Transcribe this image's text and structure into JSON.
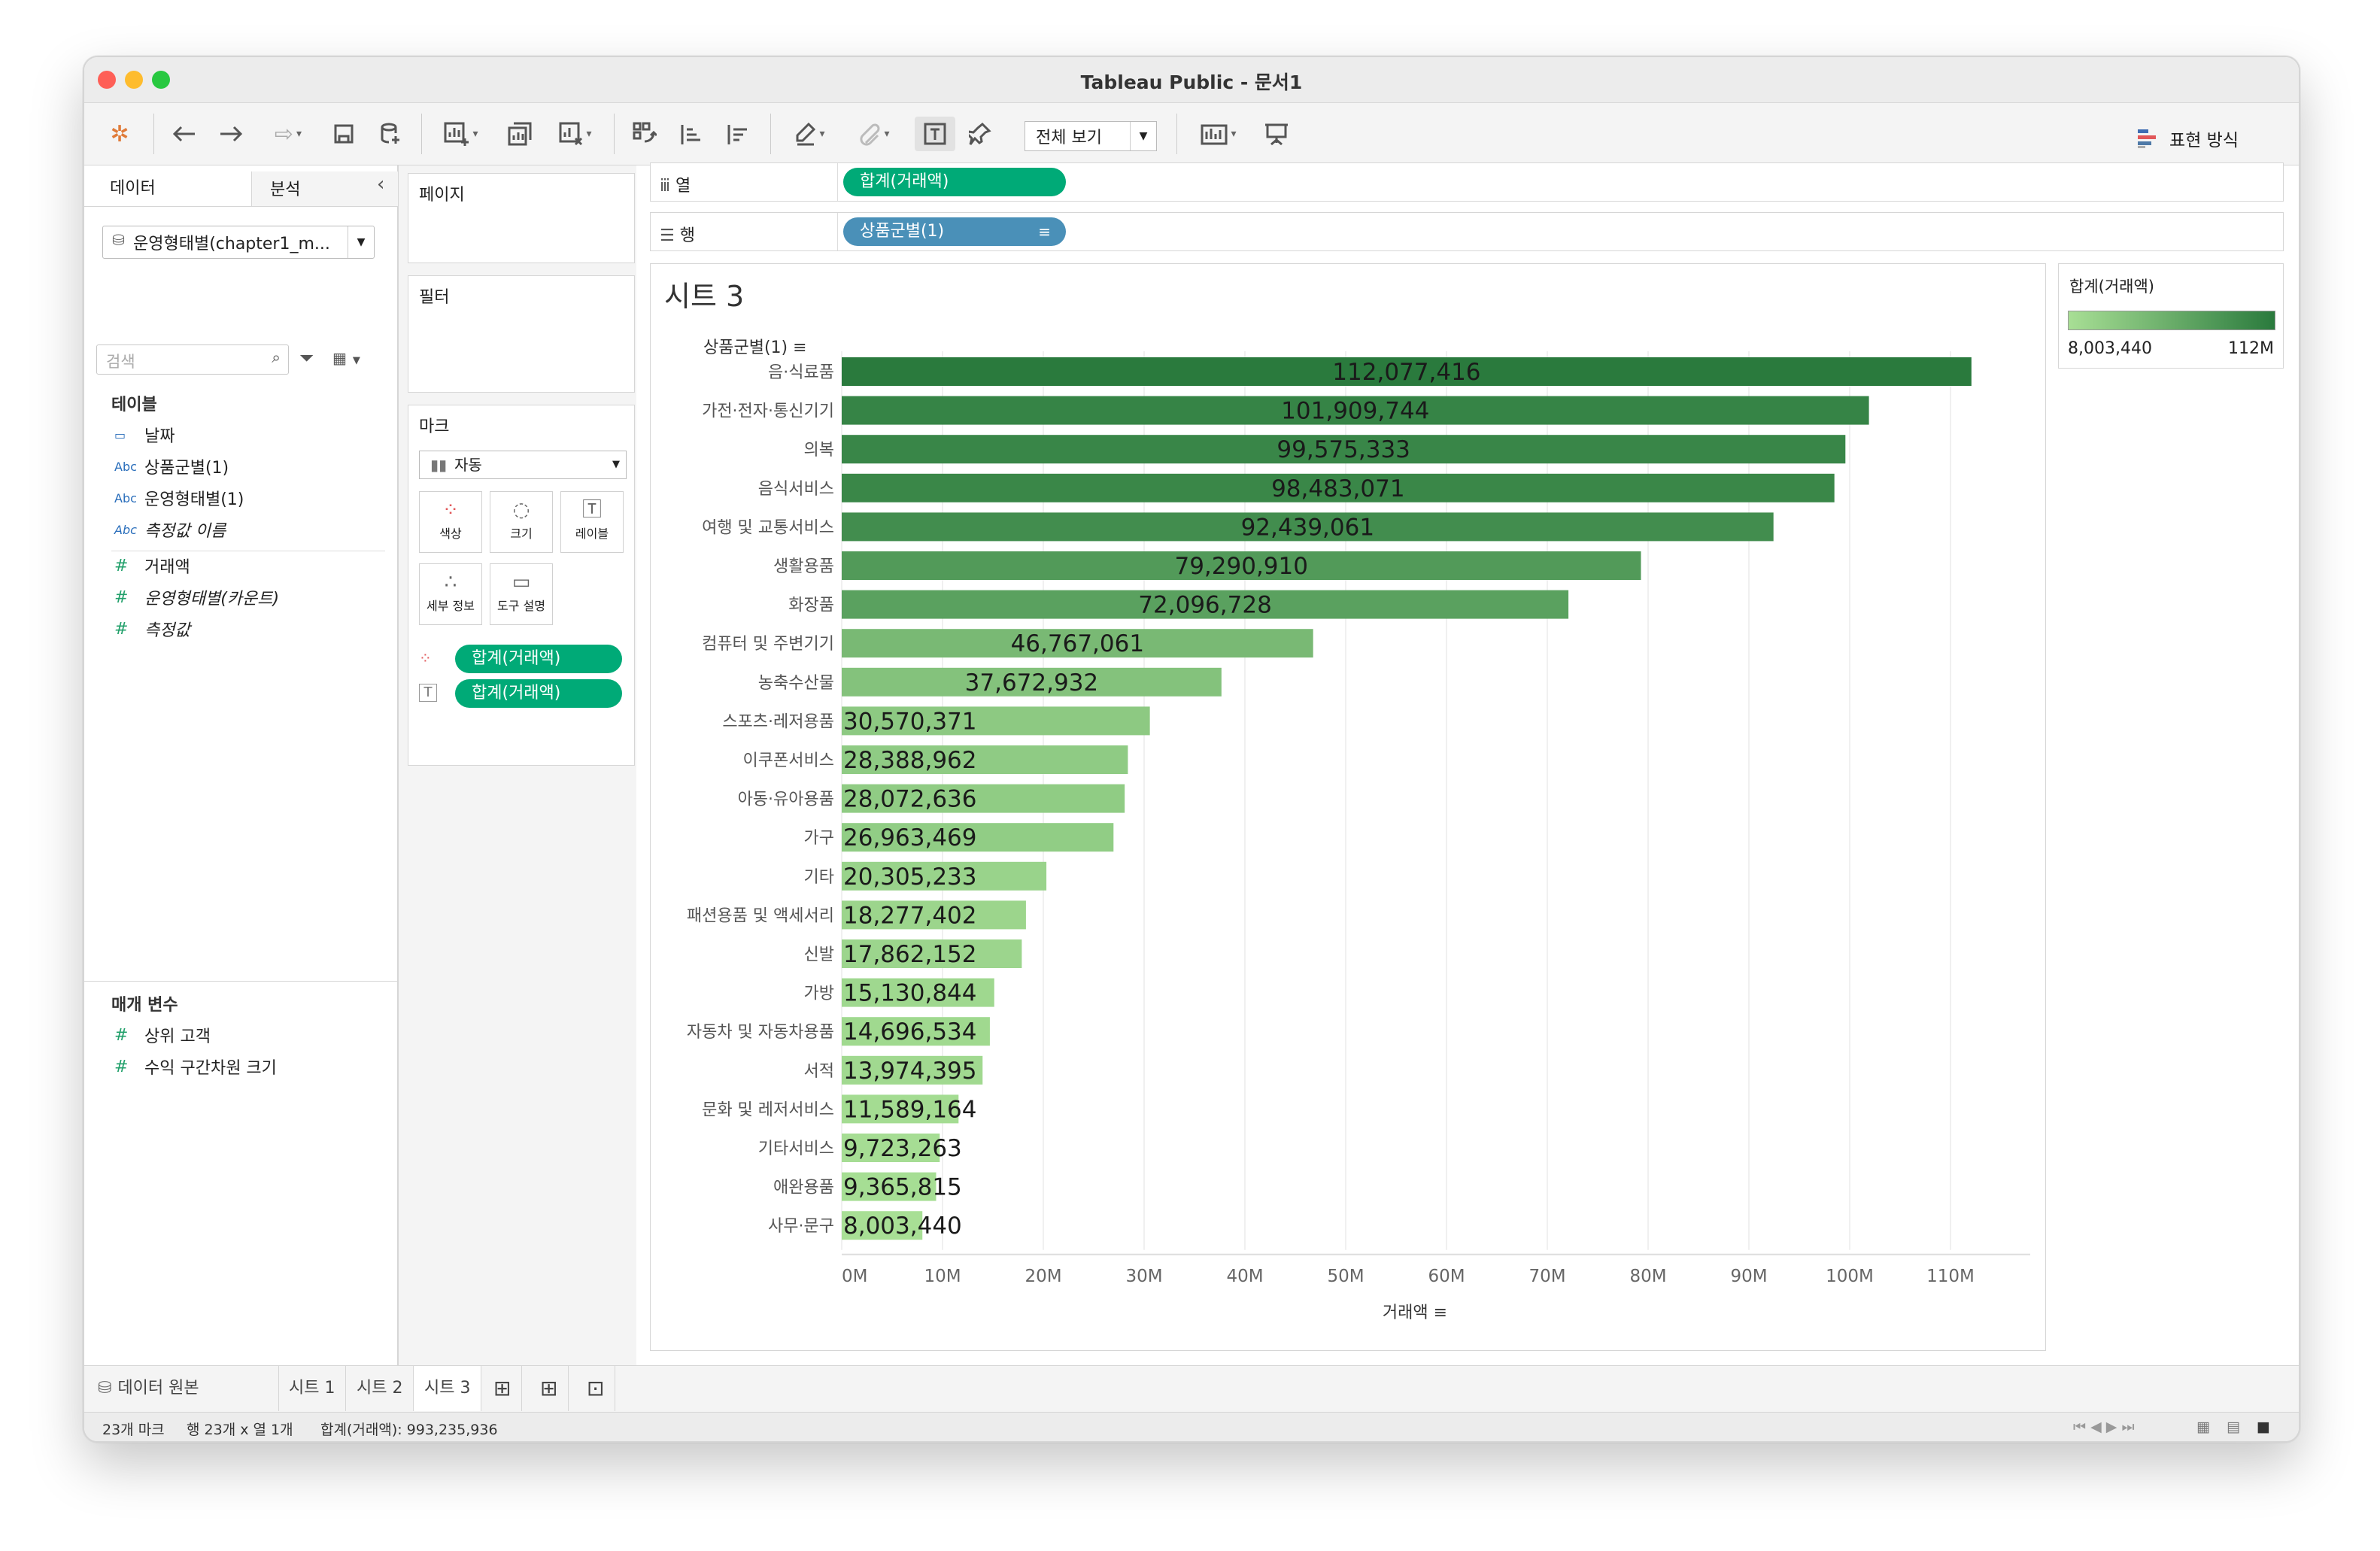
{
  "window": {
    "title": "Tableau Public - 문서1"
  },
  "toolbar": {
    "view_select": "전체 보기",
    "show_me": "표현 방식"
  },
  "left_panel": {
    "tab_data": "데이터",
    "tab_analysis": "분석",
    "datasource": "운영형태별(chapter1_m...",
    "search_placeholder": "검색",
    "tables_header": "테이블",
    "fields": [
      {
        "type": "date",
        "name": "날짜"
      },
      {
        "type": "Abc",
        "name": "상품군별(1)"
      },
      {
        "type": "Abc",
        "name": "운영형태별(1)"
      },
      {
        "type": "Abc",
        "name": "측정값 이름"
      },
      {
        "type": "#",
        "name": "거래액"
      },
      {
        "type": "#",
        "name": "운영형태별(카운트)"
      },
      {
        "type": "#",
        "name": "측정값"
      }
    ],
    "params_header": "매개 변수",
    "params": [
      {
        "type": "#",
        "name": "상위 고객"
      },
      {
        "type": "#",
        "name": "수익 구간차원 크기"
      }
    ]
  },
  "cards": {
    "pages": "페이지",
    "filters": "필터",
    "marks": "마크",
    "mark_type": "자동",
    "btn_color": "색상",
    "btn_size": "크기",
    "btn_label": "레이블",
    "btn_detail": "세부 정보",
    "btn_tooltip": "도구 설명",
    "pill_color": "합계(거래액)",
    "pill_label": "합계(거래액)"
  },
  "shelves": {
    "columns_label": "열",
    "columns_pill": "합계(거래액)",
    "rows_label": "행",
    "rows_pill": "상품군별(1)"
  },
  "legend": {
    "title": "합계(거래액)",
    "min_label": "8,003,440",
    "max_label": "112M",
    "color_min": "#a8df95",
    "color_max": "#2a7a3d"
  },
  "sheet_tabs": {
    "datasource": "데이터 원본",
    "tabs": [
      "시트 1",
      "시트 2",
      "시트 3"
    ],
    "active": "시트 3"
  },
  "status": {
    "marks": "23개 마크",
    "rows_cols": "행 23개 x 열 1개",
    "sum": "합계(거래액): 993,235,936"
  },
  "chart_data": {
    "type": "bar",
    "orientation": "horizontal",
    "title": "시트 3",
    "row_header": "상품군별(1)",
    "xlabel": "거래액",
    "xlim": [
      0,
      120000000
    ],
    "xticks": [
      "0M",
      "10M",
      "20M",
      "30M",
      "40M",
      "50M",
      "60M",
      "70M",
      "80M",
      "90M",
      "100M",
      "110M"
    ],
    "grid": "vertical",
    "color_encoding": "sequential green by value",
    "categories": [
      "음·식료품",
      "가전·전자·통신기기",
      "의복",
      "음식서비스",
      "여행 및 교통서비스",
      "생활용품",
      "화장품",
      "컴퓨터 및 주변기기",
      "농축수산물",
      "스포츠·레저용품",
      "이쿠폰서비스",
      "아동·유아용품",
      "가구",
      "기타",
      "패션용품 및 액세서리",
      "신발",
      "가방",
      "자동차 및 자동차용품",
      "서적",
      "문화 및 레저서비스",
      "기타서비스",
      "애완용품",
      "사무·문구"
    ],
    "values": [
      112077416,
      101909744,
      99575333,
      98483071,
      92439061,
      79290910,
      72096728,
      46767061,
      37672932,
      30570371,
      28388962,
      28072636,
      26963469,
      20305233,
      18277402,
      17862152,
      15130844,
      14696534,
      13974395,
      11589164,
      9723263,
      9365815,
      8003440
    ],
    "labels": [
      "112,077,416",
      "101,909,744",
      "99,575,333",
      "98,483,071",
      "92,439,061",
      "79,290,910",
      "72,096,728",
      "46,767,061",
      "37,672,932",
      "30,570,371",
      "28,388,962",
      "28,072,636",
      "26,963,469",
      "20,305,233",
      "18,277,402",
      "17,862,152",
      "15,130,844",
      "14,696,534",
      "13,974,395",
      "11,589,164",
      "9,723,263",
      "9,365,815",
      "8,003,440"
    ]
  }
}
